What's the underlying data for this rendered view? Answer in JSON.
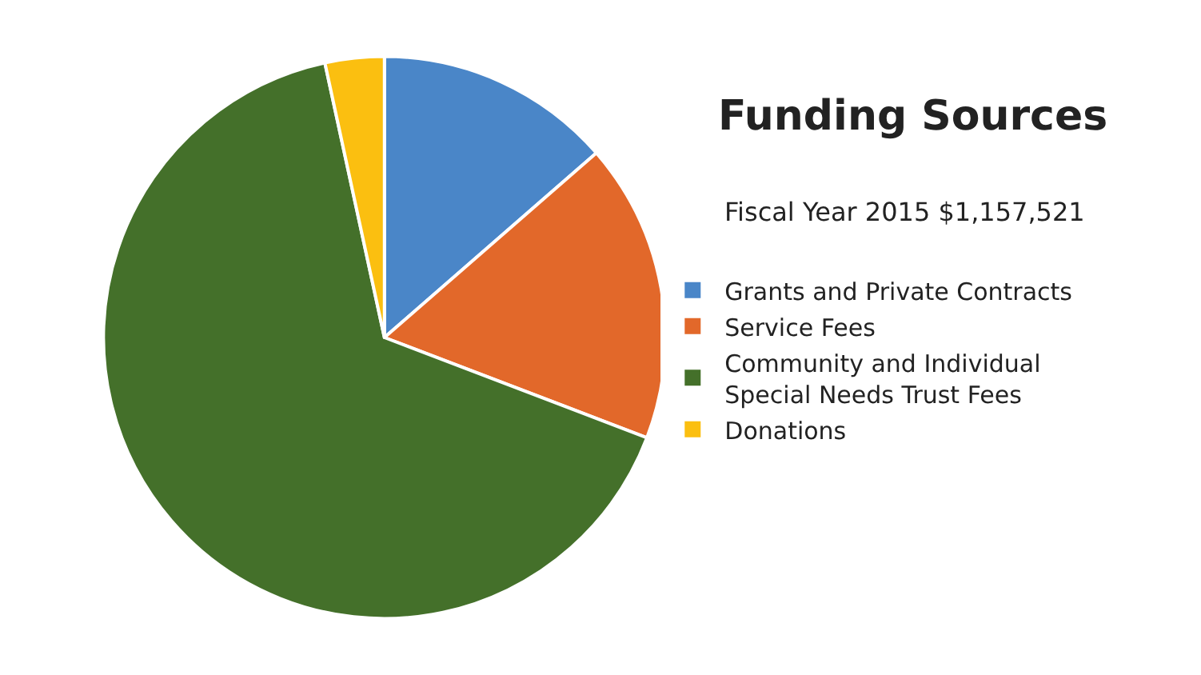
{
  "chart_data": {
    "type": "pie",
    "title": "Funding Sources",
    "subtitle": "Fiscal Year 2015 $1,157,521",
    "categories": [
      "Grants and Private Contracts",
      "Service Fees",
      "Community and Individual\nSpecial Needs Trust Fees",
      "Donations"
    ],
    "values": [
      13.6,
      17.2,
      65.8,
      3.4
    ],
    "colors": [
      "#4a86c8",
      "#e2682a",
      "#44702a",
      "#fbbf10"
    ],
    "legend": "right"
  }
}
